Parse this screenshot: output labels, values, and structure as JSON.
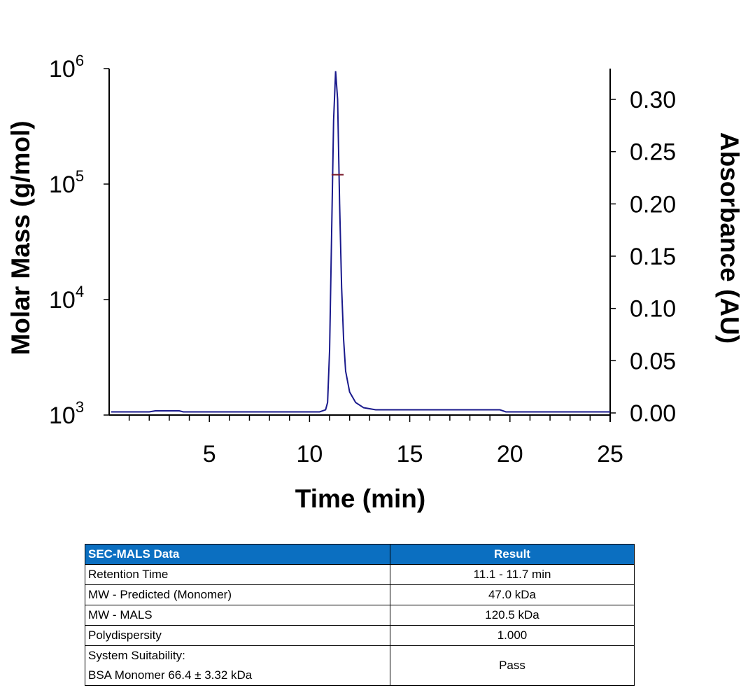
{
  "chart_data": {
    "type": "line",
    "xlabel": "Time (min)",
    "ylabel_left": "Molar Mass (g/mol)",
    "ylabel_right": "Absorbance (AU)",
    "xlim": [
      0,
      25
    ],
    "x_ticks": [
      "5",
      "10",
      "15",
      "20",
      "25"
    ],
    "ylim_left": [
      1000,
      1000000
    ],
    "y_scale_left": "log",
    "y_ticks_left": [
      {
        "base": "10",
        "exp": "3"
      },
      {
        "base": "10",
        "exp": "4"
      },
      {
        "base": "10",
        "exp": "5"
      },
      {
        "base": "10",
        "exp": "6"
      }
    ],
    "ylim_right": [
      0,
      0.33
    ],
    "y_ticks_right": [
      "0.00",
      "0.05",
      "0.10",
      "0.15",
      "0.20",
      "0.25",
      "0.30"
    ],
    "grid": false,
    "colors": {
      "absorbance": "#1a1a8c",
      "molar_mass": "#7a1a2a"
    },
    "series": [
      {
        "axis": "right",
        "x": [
          0.1,
          2.0,
          2.3,
          3.5,
          3.7,
          10.5,
          10.8,
          10.9,
          11.0,
          11.1,
          11.2,
          11.3,
          11.4,
          11.5,
          11.6,
          11.7,
          11.8,
          12.0,
          12.3,
          12.7,
          13.3,
          19.5,
          19.8,
          25.0
        ],
        "y": [
          0.001,
          0.001,
          0.002,
          0.002,
          0.001,
          0.001,
          0.003,
          0.01,
          0.06,
          0.17,
          0.28,
          0.327,
          0.3,
          0.2,
          0.12,
          0.07,
          0.04,
          0.02,
          0.01,
          0.005,
          0.003,
          0.003,
          0.001,
          0.001
        ]
      },
      {
        "axis": "left",
        "x": [
          11.1,
          11.3,
          11.5,
          11.7
        ],
        "y": [
          120500,
          120500,
          120500,
          120500
        ]
      }
    ]
  },
  "table": {
    "headers": [
      "SEC-MALS Data",
      "Result"
    ],
    "rows": [
      [
        "Retention Time",
        "11.1 - 11.7 min"
      ],
      [
        "MW - Predicted (Monomer)",
        "47.0 kDa"
      ],
      [
        "MW - MALS",
        "120.5 kDa"
      ],
      [
        "Polydispersity",
        "1.000"
      ]
    ],
    "last_row": {
      "label_line1": "System Suitability:",
      "label_line2": "BSA Monomer 66.4 ± 3.32 kDa",
      "value": "Pass"
    }
  }
}
